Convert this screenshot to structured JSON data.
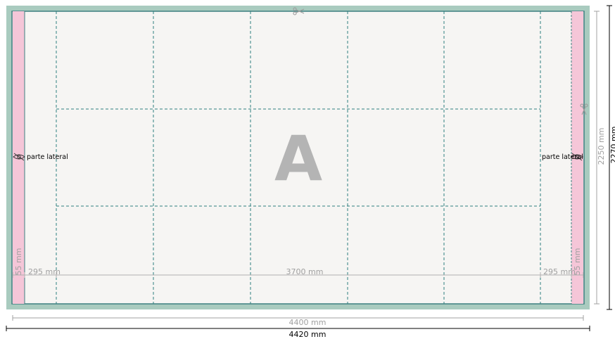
{
  "panel": {
    "letter": "A",
    "side_label_left": "parte lateral",
    "side_label_right": "parte lateral"
  },
  "dimensions": {
    "inner_width": "4400 mm",
    "outer_width": "4420 mm",
    "inner_height": "2250 mm",
    "outer_height": "2270 mm",
    "middle_span": "3700 mm",
    "left_side_span": "295 mm",
    "right_side_span": "295 mm",
    "left_margin": "55 mm",
    "right_margin": "55 mm"
  },
  "colors": {
    "frame": "#a9cbbf",
    "sheet": "#f6f5f3",
    "border": "#3e8080",
    "grid": "#2f7f7f",
    "side_strip": "#f5c6d8",
    "dim_gray": "#a0a0a0"
  },
  "icons": {
    "scissors": "scissors-icon",
    "eye": "eye-icon"
  }
}
